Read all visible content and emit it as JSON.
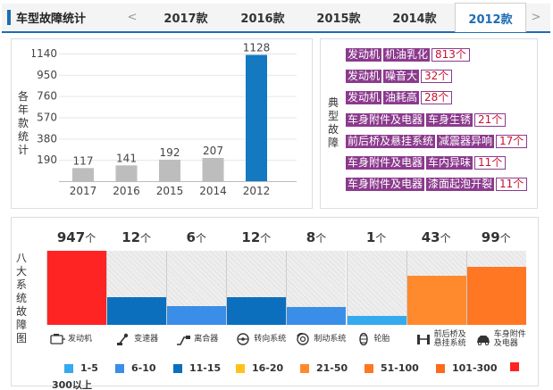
{
  "header": {
    "title": "车型故障统计",
    "prev": "<",
    "next": ">",
    "tabs": [
      {
        "label": "2017款",
        "active": false
      },
      {
        "label": "2016款",
        "active": false
      },
      {
        "label": "2015款",
        "active": false
      },
      {
        "label": "2014款",
        "active": false
      },
      {
        "label": "2012款",
        "active": true
      }
    ],
    "accent": "#1c6db5"
  },
  "year_panel": {
    "side_label": "各年款统计"
  },
  "chart_data": [
    {
      "type": "bar",
      "categories": [
        "2017",
        "2016",
        "2015",
        "2014",
        "2012"
      ],
      "values": [
        117,
        141,
        192,
        207,
        1128
      ],
      "ticks": [
        190,
        380,
        570,
        760,
        950,
        1140
      ],
      "ylim": [
        0,
        1140
      ],
      "grid": true,
      "bar_colors": [
        "#bdbdbd",
        "#bdbdbd",
        "#bdbdbd",
        "#bdbdbd",
        "#1479c1"
      ]
    },
    {
      "type": "bar",
      "categories": [
        "发动机",
        "变速器",
        "离合器",
        "转向系统",
        "制动系统",
        "轮胎",
        "前后桥及悬挂系统",
        "车身附件及电器"
      ],
      "values": [
        947,
        12,
        6,
        12,
        8,
        1,
        43,
        99
      ],
      "unit": "个",
      "fill_level": [
        1.0,
        0.37,
        0.25,
        0.37,
        0.24,
        0.12,
        0.66,
        0.78
      ],
      "bar_colors": [
        "#ff2424",
        "#0b6fbd",
        "#3a8ee8",
        "#0b6fbd",
        "#3a8ee8",
        "#36aaee",
        "#ff8a2e",
        "#ff7722"
      ]
    }
  ],
  "faults_panel": {
    "side_label": "典型故障",
    "items": [
      {
        "parts": [
          "发动机",
          "机油乳化"
        ],
        "count": "813个"
      },
      {
        "parts": [
          "发动机",
          "噪音大"
        ],
        "count": "32个"
      },
      {
        "parts": [
          "发动机",
          "油耗高"
        ],
        "count": "28个"
      },
      {
        "parts": [
          "车身附件及电器",
          "车身生锈"
        ],
        "count": "21个"
      },
      {
        "parts": [
          "前后桥及悬挂系统",
          "减震器异响"
        ],
        "count": "17个"
      },
      {
        "parts": [
          "车身附件及电器",
          "车内异味"
        ],
        "count": "11个"
      },
      {
        "parts": [
          "车身附件及电器",
          "漆面起泡开裂"
        ],
        "count": "11个"
      }
    ],
    "tag_color": "#8b3a8d",
    "count_color": "#c8102e"
  },
  "systems_panel": {
    "side_label": "八大系统故障图",
    "icons": [
      "engine-icon",
      "gearbox-icon",
      "clutch-icon",
      "steering-wheel-icon",
      "brake-icon",
      "tire-icon",
      "suspension-icon",
      "car-body-icon"
    ],
    "label_lines": [
      [
        "发动机"
      ],
      [
        "变速器"
      ],
      [
        "离合器"
      ],
      [
        "转向系统"
      ],
      [
        "制动系统"
      ],
      [
        "轮胎"
      ],
      [
        "前后桥及",
        "悬挂系统"
      ],
      [
        "车身附件",
        "及电器"
      ]
    ]
  },
  "legend": [
    {
      "label": "1-5",
      "color": "#36aaee"
    },
    {
      "label": "6-10",
      "color": "#3a8ee8"
    },
    {
      "label": "11-15",
      "color": "#0b6fbd"
    },
    {
      "label": "16-20",
      "color": "#ffc21a"
    },
    {
      "label": "21-50",
      "color": "#ff8a2e"
    },
    {
      "label": "51-100",
      "color": "#ff7722"
    },
    {
      "label": "101-300",
      "color": "#ff6a1a"
    },
    {
      "label": "300以上",
      "color": "#ff2424"
    }
  ]
}
